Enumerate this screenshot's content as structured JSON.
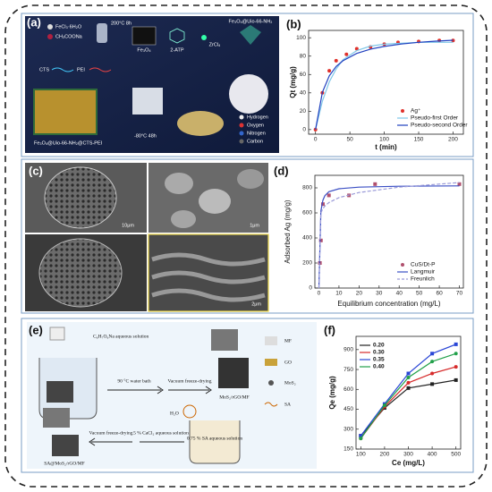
{
  "panels": [
    "(a)",
    "(b)",
    "(c)",
    "(d)",
    "(e)",
    "(f)"
  ],
  "diagram_a": {
    "reagents": [
      "FeCl₃·6H₂O",
      "CH₃COONa"
    ],
    "step1": "200°C 8h",
    "product1": "Fe₃O₄",
    "linker": "2-ATP",
    "metal": "ZrCl₄",
    "product2": "Fe₃O₄@Uio-66-NH₂",
    "polymers": [
      "CTS",
      "PEI"
    ],
    "freeze": "-80°C 48h",
    "product3": "Fe₃O₄@Uio-66-NH₂@CTS-PEI",
    "legend": [
      "Hydrogen",
      "Oxygen",
      "Nitrogen",
      "Carbon"
    ]
  },
  "micrographs_c": {
    "scale_bars": [
      "10μm",
      "1μm",
      "2μm"
    ]
  },
  "diagram_e": {
    "solution": "C₆H₇O₆Na aqueous solution",
    "bath": "90 °C water bath",
    "dry1": "Vacuum freeze-drying",
    "product1": "MoS₂/rGO/MF",
    "water": "H₂O",
    "sa": "0.75 % SA aqueous solution",
    "cacl": "5 % CaCl₂ aqueous solution",
    "dry2": "Vacuum freeze-drying",
    "product2": "SA@MoS₂/rGO/MF",
    "legend": [
      "MF",
      "GO",
      "MoS₂",
      "SA"
    ]
  },
  "chart_data": [
    {
      "type": "scatter",
      "xlabel": "t (min)",
      "ylabel": "Qt (mg/g)",
      "xlim": [
        -10,
        215
      ],
      "ylim": [
        -5,
        108
      ],
      "xticks": [
        0,
        50,
        100,
        150,
        200
      ],
      "yticks": [
        0,
        20,
        40,
        60,
        80,
        100
      ],
      "legend": "lower right",
      "series": [
        {
          "name": "Ag⁺",
          "type": "scatter",
          "color": "#e0302a",
          "x": [
            0,
            10,
            20,
            30,
            45,
            60,
            80,
            100,
            120,
            150,
            180,
            200
          ],
          "values": [
            0,
            40,
            64,
            75,
            82,
            88,
            90,
            93,
            95,
            96,
            97,
            97
          ]
        },
        {
          "name": "Pseudo-first Order",
          "type": "line",
          "color": "#7fc7e8",
          "x": [
            0,
            10,
            20,
            30,
            40,
            60,
            80,
            100,
            125,
            150,
            175,
            200
          ],
          "values": [
            0,
            31,
            52,
            66,
            76,
            86,
            91,
            93,
            94,
            95,
            95,
            95
          ]
        },
        {
          "name": "Pseudo-second Order",
          "type": "line",
          "color": "#1f3fbf",
          "x": [
            0,
            10,
            20,
            30,
            40,
            60,
            80,
            100,
            125,
            150,
            175,
            200
          ],
          "values": [
            0,
            40.6,
            58.5,
            68.7,
            75,
            83,
            87.6,
            90.6,
            93.2,
            95,
            96.3,
            97.3
          ]
        }
      ]
    },
    {
      "type": "scatter",
      "xlabel": "Equilibrium concentration (mg/L)",
      "ylabel": "Adsorbed Ag (mg/g)",
      "xlim": [
        -2,
        72
      ],
      "ylim": [
        0,
        900
      ],
      "xticks": [
        0,
        10,
        20,
        30,
        40,
        50,
        60,
        70
      ],
      "yticks": [
        0,
        200,
        400,
        600,
        800
      ],
      "legend": "lower right",
      "series": [
        {
          "name": "CuS/Dt-P",
          "type": "scatter",
          "color": "#b0506e",
          "x": [
            0.5,
            1,
            2,
            5,
            15,
            28,
            70
          ],
          "values": [
            200,
            380,
            670,
            740,
            740,
            830,
            830
          ]
        },
        {
          "name": "Langmuir",
          "type": "line",
          "color": "#3b4fc4",
          "x": [
            0,
            1,
            2,
            3,
            5,
            10,
            20,
            40,
            70
          ],
          "values": [
            0,
            615,
            702,
            738,
            769,
            793,
            806,
            813,
            816
          ]
        },
        {
          "name": "Freunlich",
          "type": "line",
          "dash": true,
          "color": "#9a9ad8",
          "x": [
            0,
            1,
            2,
            3,
            5,
            10,
            20,
            40,
            70
          ],
          "values": [
            0,
            600,
            634,
            655,
            683,
            722,
            763,
            806,
            842
          ]
        }
      ]
    },
    {
      "type": "line",
      "xlabel": "Ce (mg/L)",
      "ylabel": "Qe (mg/g)",
      "xlim": [
        80,
        520
      ],
      "ylim": [
        150,
        1000
      ],
      "xticks": [
        100,
        200,
        300,
        400,
        500
      ],
      "yticks": [
        150,
        300,
        450,
        600,
        750,
        900
      ],
      "legend": "upper left",
      "series": [
        {
          "name": "0.20",
          "type": "line",
          "markers": true,
          "color": "#222222",
          "x": [
            100,
            200,
            300,
            400,
            500
          ],
          "values": [
            250,
            460,
            610,
            640,
            670
          ]
        },
        {
          "name": "0.30",
          "type": "line",
          "markers": true,
          "color": "#d62a2a",
          "x": [
            100,
            200,
            300,
            400,
            500
          ],
          "values": [
            230,
            470,
            650,
            720,
            770
          ]
        },
        {
          "name": "0.35",
          "type": "line",
          "markers": true,
          "color": "#2a46d6",
          "x": [
            100,
            200,
            300,
            400,
            500
          ],
          "values": [
            250,
            490,
            720,
            870,
            940
          ]
        },
        {
          "name": "0.40",
          "type": "line",
          "markers": true,
          "color": "#22a04a",
          "x": [
            100,
            200,
            300,
            400,
            500
          ],
          "values": [
            230,
            480,
            690,
            810,
            870
          ]
        }
      ]
    }
  ]
}
